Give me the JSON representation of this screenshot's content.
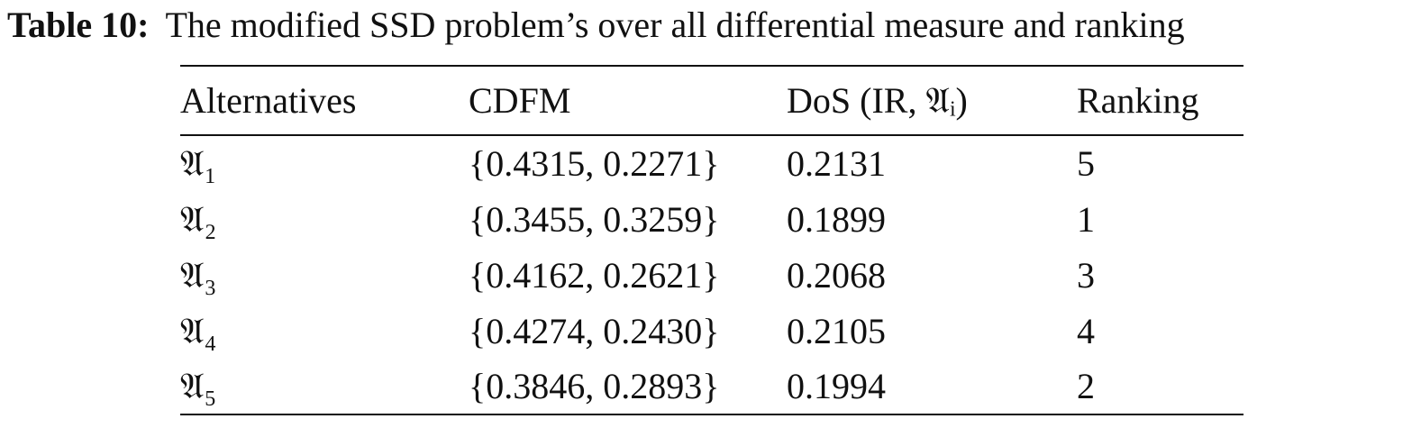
{
  "caption": {
    "label": "Table 10:",
    "text": "The modified SSD problem’s over all differential measure and ranking"
  },
  "table": {
    "header": [
      "Alternatives",
      "CDFM",
      "DoS (IR, 𝔄ᵢ)",
      "Ranking"
    ],
    "rows": [
      [
        "𝔄₁",
        "{0.4315, 0.2271}",
        "0.2131",
        "5"
      ],
      [
        "𝔄₂",
        "{0.3455, 0.3259}",
        "0.1899",
        "1"
      ],
      [
        "𝔄₃",
        "{0.4162, 0.2621}",
        "0.2068",
        "3"
      ],
      [
        "𝔄₄",
        "{0.4274, 0.2430}",
        "0.2105",
        "4"
      ],
      [
        "𝔄₅",
        "{0.3846, 0.2893}",
        "0.1994",
        "2"
      ]
    ]
  }
}
